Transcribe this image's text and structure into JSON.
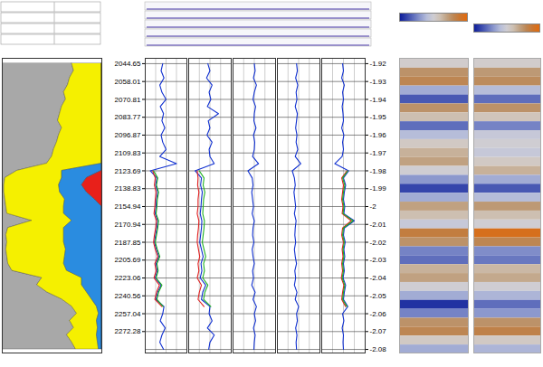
{
  "chart_data": {
    "type": "well_log",
    "ylim": [
      -2.082,
      -1.917
    ],
    "yticks": [
      -1.92,
      -1.93,
      -1.94,
      -1.95,
      -1.96,
      -1.97,
      -1.98,
      -1.99,
      -2,
      -2.01,
      -2.02,
      -2.03,
      -2.04,
      -2.05,
      -2.06,
      -2.07,
      -2.08
    ],
    "depth_ticks": [
      {
        "value": -1.92,
        "label": "2044.65"
      },
      {
        "value": -1.93,
        "label": "2058.01"
      },
      {
        "value": -1.94,
        "label": "2070.81"
      },
      {
        "value": -1.95,
        "label": "2083.77"
      },
      {
        "value": -1.96,
        "label": "2096.87"
      },
      {
        "value": -1.97,
        "label": "2109.83"
      },
      {
        "value": -1.98,
        "label": "2123.69"
      },
      {
        "value": -1.99,
        "label": "2138.83"
      },
      {
        "value": -2,
        "label": "2154.94"
      },
      {
        "value": -2.01,
        "label": "2170.94"
      },
      {
        "value": -2.02,
        "label": "2187.85"
      },
      {
        "value": -2.03,
        "label": "2205.69"
      },
      {
        "value": -2.04,
        "label": "2223.06"
      },
      {
        "value": -2.05,
        "label": "2240.56"
      },
      {
        "value": -2.06,
        "label": "2257.04"
      },
      {
        "value": -2.07,
        "label": "2272.28"
      }
    ],
    "x": [
      -1.92,
      -1.924,
      -1.928,
      -1.932,
      -1.936,
      -1.94,
      -1.944,
      -1.948,
      -1.952,
      -1.956,
      -1.96,
      -1.964,
      -1.968,
      -1.972,
      -1.976,
      -1.98,
      -1.984,
      -1.988,
      -1.992,
      -1.996,
      -2,
      -2.004,
      -2.008,
      -2.012,
      -2.016,
      -2.02,
      -2.024,
      -2.028,
      -2.032,
      -2.036,
      -2.04,
      -2.044,
      -2.048,
      -2.052,
      -2.056,
      -2.06,
      -2.064,
      -2.068,
      -2.072,
      -2.076,
      -2.08
    ],
    "tracks": [
      {
        "type": "area",
        "stacked": true,
        "xlim": [
          0,
          1
        ],
        "tick_labels": false,
        "series": [
          {
            "color": "#a8a8a8",
            "values": [
              0.7,
              0.72,
              0.68,
              0.66,
              0.62,
              0.64,
              0.6,
              0.58,
              0.56,
              0.6,
              0.57,
              0.55,
              0.52,
              0.5,
              0.45,
              0.15,
              0.03,
              0.02,
              0.02,
              0.03,
              0.04,
              0.05,
              0.3,
              0.06,
              0.04,
              0.05,
              0.04,
              0.05,
              0.06,
              0.1,
              0.4,
              0.35,
              0.45,
              0.6,
              0.7,
              0.75,
              0.68,
              0.72,
              0.65,
              0.7,
              0.74
            ]
          },
          {
            "color": "#f5f000",
            "values": [
              0.3,
              0.28,
              0.32,
              0.34,
              0.38,
              0.36,
              0.4,
              0.42,
              0.44,
              0.4,
              0.43,
              0.45,
              0.48,
              0.5,
              0.55,
              0.45,
              0.57,
              0.55,
              0.56,
              0.6,
              0.58,
              0.57,
              0.4,
              0.56,
              0.58,
              0.57,
              0.6,
              0.58,
              0.56,
              0.55,
              0.4,
              0.45,
              0.4,
              0.3,
              0.25,
              0.22,
              0.27,
              0.24,
              0.3,
              0.26,
              0.23
            ]
          },
          {
            "color": "#2a8ce0",
            "values": [
              0,
              0,
              0,
              0,
              0,
              0,
              0,
              0,
              0,
              0,
              0,
              0,
              0,
              0,
              0,
              0.4,
              0.25,
              0.23,
              0.27,
              0.3,
              0.38,
              0.38,
              0.3,
              0.38,
              0.38,
              0.38,
              0.36,
              0.37,
              0.38,
              0.35,
              0.2,
              0.2,
              0.15,
              0.1,
              0.05,
              0.03,
              0.05,
              0.04,
              0.05,
              0.04,
              0.03
            ]
          },
          {
            "color": "#e8201a",
            "values": [
              0,
              0,
              0,
              0,
              0,
              0,
              0,
              0,
              0,
              0,
              0,
              0,
              0,
              0,
              0,
              0,
              0.15,
              0.2,
              0.15,
              0.07,
              0,
              0,
              0,
              0,
              0,
              0,
              0,
              0,
              0,
              0,
              0,
              0,
              0,
              0,
              0,
              0,
              0,
              0,
              0,
              0,
              0
            ]
          }
        ]
      },
      {
        "type": "line",
        "xlim": [
          0,
          1
        ],
        "xticks": [
          0,
          0.25,
          0.5,
          0.75,
          1
        ],
        "grid": true,
        "tick_labels": false,
        "series": [
          {
            "color": "#1030d0",
            "values": [
              0.42,
              0.38,
              0.45,
              0.35,
              0.4,
              0.5,
              0.36,
              0.44,
              0.4,
              0.47,
              0.38,
              0.42,
              0.5,
              0.35,
              0.75,
              0.12,
              0.28,
              0.25,
              0.3,
              0.27,
              0.26,
              0.24,
              0.3,
              0.28,
              0.25,
              0.22,
              0.27,
              0.33,
              0.26,
              0.29,
              0.24,
              0.38,
              0.3,
              0.26,
              0.45,
              0.42,
              0.36,
              0.48,
              0.4,
              0.35,
              0.44
            ]
          },
          {
            "color": "#e02020",
            "values": [
              null,
              null,
              null,
              null,
              null,
              null,
              null,
              null,
              null,
              null,
              null,
              null,
              null,
              null,
              null,
              0.18,
              0.24,
              0.22,
              0.26,
              0.24,
              0.23,
              0.21,
              0.27,
              0.25,
              0.22,
              0.2,
              0.24,
              0.3,
              0.23,
              0.26,
              0.21,
              0.34,
              0.27,
              0.23,
              0.4,
              null,
              null,
              null,
              null,
              null,
              null
            ]
          },
          {
            "color": "#20b020",
            "values": [
              null,
              null,
              null,
              null,
              null,
              null,
              null,
              null,
              null,
              null,
              null,
              null,
              null,
              null,
              null,
              0.2,
              0.3,
              0.27,
              0.32,
              0.29,
              0.28,
              0.26,
              0.32,
              0.3,
              0.27,
              0.24,
              0.29,
              0.35,
              0.28,
              0.31,
              0.26,
              0.4,
              0.32,
              0.28,
              0.43,
              null,
              null,
              null,
              null,
              null,
              null
            ]
          }
        ]
      },
      {
        "type": "line",
        "xlim": [
          0,
          1
        ],
        "xticks": [
          0,
          0.25,
          0.5,
          0.75,
          1
        ],
        "grid": true,
        "tick_labels": false,
        "series": [
          {
            "color": "#1030d0",
            "values": [
              0.45,
              0.5,
              0.42,
              0.55,
              0.48,
              0.52,
              0.44,
              0.7,
              0.46,
              0.5,
              0.43,
              0.55,
              0.48,
              0.5,
              0.6,
              0.15,
              0.3,
              0.28,
              0.32,
              0.3,
              0.29,
              0.27,
              0.31,
              0.3,
              0.28,
              0.26,
              0.3,
              0.34,
              0.29,
              0.31,
              0.27,
              0.4,
              0.33,
              0.3,
              0.5,
              0.48,
              0.55,
              0.44,
              0.6,
              0.5,
              0.47
            ]
          },
          {
            "color": "#e02020",
            "values": [
              null,
              null,
              null,
              null,
              null,
              null,
              null,
              null,
              null,
              null,
              null,
              null,
              null,
              null,
              null,
              0.2,
              0.22,
              0.21,
              0.24,
              0.22,
              0.22,
              0.2,
              0.24,
              0.23,
              0.21,
              0.2,
              0.23,
              0.26,
              0.22,
              0.24,
              0.2,
              0.3,
              0.25,
              0.22,
              0.36,
              null,
              null,
              null,
              null,
              null,
              null
            ]
          },
          {
            "color": "#20b020",
            "values": [
              null,
              null,
              null,
              null,
              null,
              null,
              null,
              null,
              null,
              null,
              null,
              null,
              null,
              null,
              null,
              0.25,
              0.36,
              0.34,
              0.38,
              0.35,
              0.34,
              0.33,
              0.37,
              0.36,
              0.34,
              0.32,
              0.36,
              0.4,
              0.35,
              0.37,
              0.33,
              0.45,
              0.38,
              0.35,
              0.52,
              null,
              null,
              null,
              null,
              null,
              null
            ]
          }
        ]
      },
      {
        "type": "line",
        "xlim": [
          0,
          1
        ],
        "xticks": [
          0,
          0.25,
          0.5,
          0.75,
          1
        ],
        "grid": true,
        "tick_labels": false,
        "series": [
          {
            "color": "#1030d0",
            "values": [
              0.5,
              0.52,
              0.48,
              0.55,
              0.5,
              0.47,
              0.53,
              0.5,
              0.49,
              0.54,
              0.48,
              0.51,
              0.5,
              0.46,
              0.6,
              0.35,
              0.45,
              0.47,
              0.44,
              0.46,
              0.48,
              0.45,
              0.5,
              0.47,
              0.46,
              0.49,
              0.45,
              0.47,
              0.5,
              0.46,
              0.48,
              0.44,
              0.52,
              0.47,
              0.55,
              0.5,
              0.53,
              0.48,
              0.52,
              0.5,
              0.49
            ]
          }
        ]
      },
      {
        "type": "line",
        "xlim": [
          0,
          1
        ],
        "xticks": [
          0,
          0.25,
          0.5,
          0.75,
          1
        ],
        "grid": true,
        "tick_labels": false,
        "series": [
          {
            "color": "#1030d0",
            "values": [
              0.45,
              0.47,
              0.43,
              0.48,
              0.44,
              0.46,
              0.42,
              0.47,
              0.45,
              0.43,
              0.46,
              0.44,
              0.48,
              0.42,
              0.55,
              0.35,
              0.4,
              0.42,
              0.39,
              0.41,
              0.43,
              0.4,
              0.44,
              0.42,
              0.41,
              0.43,
              0.4,
              0.42,
              0.45,
              0.41,
              0.43,
              0.4,
              0.46,
              0.42,
              0.5,
              0.45,
              0.47,
              0.43,
              0.46,
              0.44,
              0.45
            ]
          }
        ]
      },
      {
        "type": "line",
        "xlim": [
          0,
          1
        ],
        "xticks": [
          0,
          0.25,
          0.5,
          0.75,
          1
        ],
        "grid": true,
        "tick_labels": false,
        "series": [
          {
            "color": "#1030d0",
            "values": [
              0.48,
              0.5,
              0.46,
              0.52,
              0.48,
              0.5,
              0.47,
              0.49,
              0.5,
              0.46,
              0.51,
              0.48,
              0.5,
              0.47,
              0.3,
              0.62,
              0.5,
              0.55,
              0.52,
              0.5,
              0.53,
              0.51,
              0.75,
              0.52,
              0.5,
              0.54,
              0.51,
              0.53,
              0.5,
              0.52,
              0.49,
              0.55,
              0.52,
              0.5,
              0.6,
              0.48,
              0.51,
              0.47,
              0.5,
              0.49,
              0.5
            ]
          },
          {
            "color": "#e02020",
            "values": [
              null,
              null,
              null,
              null,
              null,
              null,
              null,
              null,
              null,
              null,
              null,
              null,
              null,
              null,
              null,
              0.58,
              0.46,
              0.5,
              0.48,
              0.46,
              0.49,
              0.47,
              0.68,
              0.48,
              0.46,
              0.5,
              0.47,
              0.49,
              0.46,
              0.48,
              0.45,
              0.51,
              0.48,
              0.46,
              0.55,
              null,
              null,
              null,
              null,
              null,
              null
            ]
          },
          {
            "color": "#20b020",
            "values": [
              null,
              null,
              null,
              null,
              null,
              null,
              null,
              null,
              null,
              null,
              null,
              null,
              null,
              null,
              null,
              0.6,
              0.48,
              0.53,
              0.5,
              0.48,
              0.51,
              0.49,
              0.72,
              0.5,
              0.48,
              0.52,
              0.49,
              0.51,
              0.48,
              0.5,
              0.47,
              0.53,
              0.5,
              0.48,
              0.58,
              null,
              null,
              null,
              null,
              null,
              null
            ]
          }
        ]
      }
    ],
    "seismic": {
      "type": "heatmap",
      "color_range": [
        -1,
        1
      ],
      "x": [
        -1.92,
        -1.925,
        -1.93,
        -1.935,
        -1.94,
        -1.945,
        -1.95,
        -1.955,
        -1.96,
        -1.965,
        -1.97,
        -1.975,
        -1.98,
        -1.985,
        -1.99,
        -1.995,
        -2,
        -2.005,
        -2.01,
        -2.015,
        -2.02,
        -2.025,
        -2.03,
        -2.035,
        -2.04,
        -2.045,
        -2.05,
        -2.055,
        -2.06,
        -2.065,
        -2.07,
        -2.075,
        -2.08
      ],
      "panels": [
        {
          "values": [
            0.05,
            0.5,
            0.6,
            -0.3,
            -0.7,
            0.5,
            0.2,
            -0.6,
            -0.2,
            0.1,
            0.3,
            0.4,
            0.0,
            -0.4,
            -0.8,
            -0.3,
            0.4,
            0.2,
            -0.1,
            0.7,
            0.5,
            -0.5,
            -0.6,
            0.3,
            0.4,
            0.0,
            -0.3,
            -0.9,
            -0.5,
            0.5,
            0.6,
            0.1,
            -0.3
          ]
        },
        {
          "values": [
            0.05,
            0.45,
            0.55,
            -0.2,
            -0.6,
            0.5,
            0.15,
            -0.5,
            -0.1,
            0.0,
            -0.1,
            0.1,
            0.3,
            -0.3,
            -0.7,
            -0.2,
            0.45,
            0.2,
            0.0,
            0.9,
            0.6,
            -0.45,
            -0.55,
            0.25,
            0.35,
            0.0,
            -0.25,
            -0.6,
            -0.4,
            0.5,
            0.65,
            0.1,
            -0.25
          ]
        }
      ]
    }
  }
}
